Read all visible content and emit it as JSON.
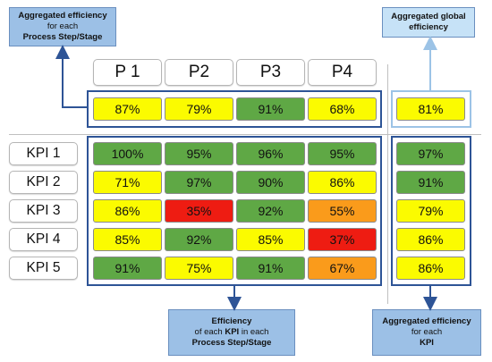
{
  "colors": {
    "green": "#5fa845",
    "yellow": "#fbfb00",
    "red": "#ee1c12",
    "orange": "#fa9b1b",
    "frame_dark": "#2e5496",
    "frame_light": "#9cc3e6",
    "callout_dark": "#9cc0e6",
    "callout_light": "#c6e2f7"
  },
  "callouts": {
    "process": {
      "line1": "Aggregated efficiency",
      "line2": "for each",
      "line3": "Process Step/Stage"
    },
    "global": {
      "line1": "Aggregated global",
      "line2": "efficiency"
    },
    "kpi_process": {
      "line1": "Efficiency",
      "line2a": "of each ",
      "line2b": "KPI",
      "line2c": " in each",
      "line3": "Process Step/Stage"
    },
    "kpi": {
      "line1": "Aggregated efficiency",
      "line2": "for each",
      "line3": "KPI"
    }
  },
  "steps": [
    "P 1",
    "P2",
    "P3",
    "P4"
  ],
  "step_totals": [
    {
      "value": "87%",
      "color": "yellow"
    },
    {
      "value": "79%",
      "color": "yellow"
    },
    {
      "value": "91%",
      "color": "green"
    },
    {
      "value": "68%",
      "color": "yellow"
    }
  ],
  "global_total": {
    "value": "81%",
    "color": "yellow"
  },
  "kpis": [
    {
      "label": "KPI 1",
      "cells": [
        {
          "value": "100%",
          "color": "green"
        },
        {
          "value": "95%",
          "color": "green"
        },
        {
          "value": "96%",
          "color": "green"
        },
        {
          "value": "95%",
          "color": "green"
        }
      ],
      "total": {
        "value": "97%",
        "color": "green"
      }
    },
    {
      "label": "KPI 2",
      "cells": [
        {
          "value": "71%",
          "color": "yellow"
        },
        {
          "value": "97%",
          "color": "green"
        },
        {
          "value": "90%",
          "color": "green"
        },
        {
          "value": "86%",
          "color": "yellow"
        }
      ],
      "total": {
        "value": "91%",
        "color": "green"
      }
    },
    {
      "label": "KPI 3",
      "cells": [
        {
          "value": "86%",
          "color": "yellow"
        },
        {
          "value": "35%",
          "color": "red"
        },
        {
          "value": "92%",
          "color": "green"
        },
        {
          "value": "55%",
          "color": "orange"
        }
      ],
      "total": {
        "value": "79%",
        "color": "yellow"
      }
    },
    {
      "label": "KPI 4",
      "cells": [
        {
          "value": "85%",
          "color": "yellow"
        },
        {
          "value": "92%",
          "color": "green"
        },
        {
          "value": "85%",
          "color": "yellow"
        },
        {
          "value": "37%",
          "color": "red"
        }
      ],
      "total": {
        "value": "86%",
        "color": "yellow"
      }
    },
    {
      "label": "KPI 5",
      "cells": [
        {
          "value": "91%",
          "color": "green"
        },
        {
          "value": "75%",
          "color": "yellow"
        },
        {
          "value": "91%",
          "color": "green"
        },
        {
          "value": "67%",
          "color": "orange"
        }
      ],
      "total": {
        "value": "86%",
        "color": "yellow"
      }
    }
  ]
}
